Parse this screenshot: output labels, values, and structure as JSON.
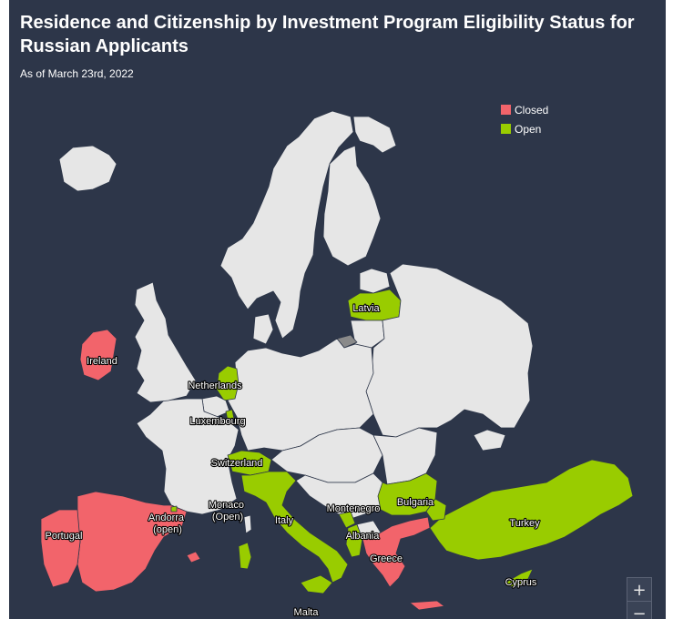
{
  "title": "Residence and Citizenship by Investment Program Eligibility Status for Russian Applicants",
  "subtitle": "As of March 23rd, 2022",
  "colors": {
    "background": "#2d3649",
    "neutral": "#e6e6e6",
    "closed": "#f2646b",
    "open": "#99cc00",
    "kaliningrad": "#8a8a8a"
  },
  "legend": [
    {
      "label": "Closed",
      "status": "closed"
    },
    {
      "label": "Open",
      "status": "open"
    }
  ],
  "countries": [
    {
      "id": "ireland",
      "label": "Ireland",
      "status": "closed"
    },
    {
      "id": "portugal",
      "label": "Portugal",
      "status": "closed"
    },
    {
      "id": "spain",
      "label": "",
      "status": "closed"
    },
    {
      "id": "greece",
      "label": "Greece",
      "status": "closed"
    },
    {
      "id": "andorra",
      "label": "Andorra\n(open)",
      "status": "open"
    },
    {
      "id": "monaco",
      "label": "Monaco\n(Open)",
      "status": "open"
    },
    {
      "id": "netherlands",
      "label": "Netherlands",
      "status": "open"
    },
    {
      "id": "luxembourg",
      "label": "Luxembourg",
      "status": "open"
    },
    {
      "id": "switzerland",
      "label": "Switzerland",
      "status": "open"
    },
    {
      "id": "italy",
      "label": "Italy",
      "status": "open"
    },
    {
      "id": "malta",
      "label": "Malta",
      "status": "open"
    },
    {
      "id": "montenegro",
      "label": "Montenegro",
      "status": "open"
    },
    {
      "id": "albania",
      "label": "Albania",
      "status": "open"
    },
    {
      "id": "bulgaria",
      "label": "Bulgaria",
      "status": "open"
    },
    {
      "id": "turkey",
      "label": "Turkey",
      "status": "open"
    },
    {
      "id": "cyprus",
      "label": "Cyprus",
      "status": "open"
    },
    {
      "id": "latvia",
      "label": "Latvia",
      "status": "open"
    }
  ],
  "zoom": {
    "in": "+",
    "out": "−"
  }
}
